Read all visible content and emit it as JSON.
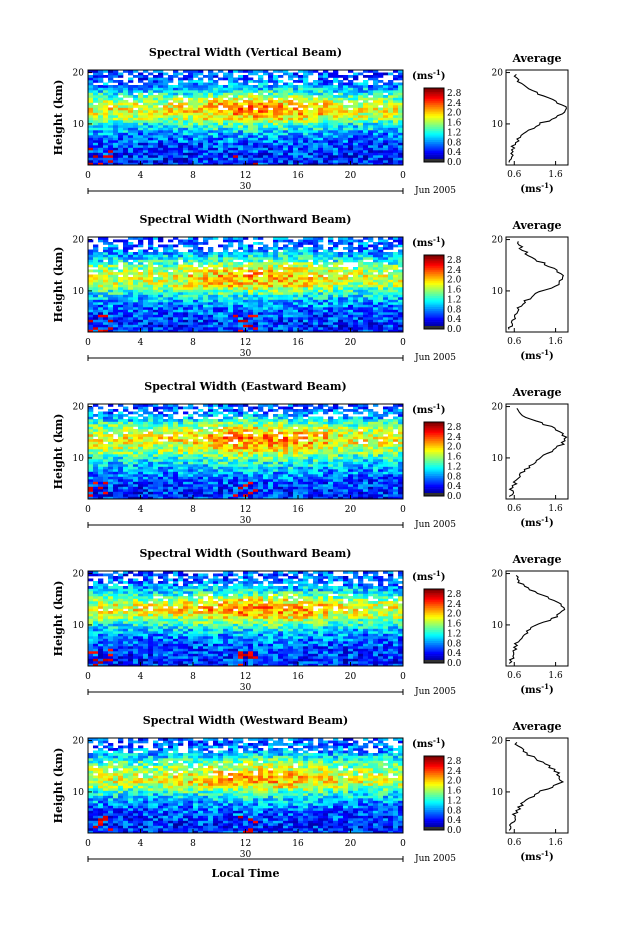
{
  "figure": {
    "date_label": "Jun 2005",
    "day_label": "30",
    "xlabel": "Local Time",
    "ylabel": "Height (km)",
    "cbar_unit_base": "(ms",
    "cbar_unit_exp": "-1",
    "cbar_unit_close": ")",
    "avg_title": "Average",
    "avg_xlabel_base": "(ms",
    "avg_xlabel_exp": "-1",
    "avg_xlabel_close": ")"
  },
  "chart_data": [
    {
      "type": "heatmap",
      "title": "Spectral Width (Vertical Beam)",
      "xlabel": "Local Time",
      "ylabel": "Height (km)",
      "x_ticks": [
        "0",
        "4",
        "8",
        "12",
        "16",
        "20",
        "0"
      ],
      "xlim": [
        0,
        24
      ],
      "y_ticks": [
        "10",
        "20"
      ],
      "ylim": [
        2,
        20.5
      ],
      "colorbar": {
        "ticks": [
          "0.0",
          "0.4",
          "0.8",
          "1.2",
          "1.6",
          "2.0",
          "2.4",
          "2.8"
        ],
        "range": [
          0,
          3.0
        ]
      },
      "average_profile": {
        "title": "Average",
        "x_ticks": [
          "0.6",
          "1.6"
        ],
        "xlim": [
          0.4,
          1.9
        ],
        "y_ticks": [
          "10",
          "20"
        ],
        "heights": [
          2.5,
          4,
          6,
          8,
          10,
          11,
          12,
          13,
          14,
          15,
          16,
          17,
          18,
          19,
          20
        ],
        "values": [
          0.5,
          0.55,
          0.6,
          0.8,
          1.2,
          1.6,
          1.75,
          1.85,
          1.7,
          1.45,
          1.15,
          0.9,
          0.75,
          0.65,
          0.6
        ]
      }
    },
    {
      "type": "heatmap",
      "title": "Spectral Width (Northward Beam)",
      "xlabel": "Local Time",
      "ylabel": "Height (km)",
      "x_ticks": [
        "0",
        "4",
        "8",
        "12",
        "16",
        "20",
        "0"
      ],
      "xlim": [
        0,
        24
      ],
      "y_ticks": [
        "10",
        "20"
      ],
      "ylim": [
        2,
        20.5
      ],
      "colorbar": {
        "ticks": [
          "0.0",
          "0.4",
          "0.8",
          "1.2",
          "1.6",
          "2.0",
          "2.4",
          "2.8"
        ],
        "range": [
          0,
          3.0
        ]
      },
      "average_profile": {
        "title": "Average",
        "x_ticks": [
          "0.6",
          "1.6"
        ],
        "xlim": [
          0.4,
          1.9
        ],
        "y_ticks": [
          "10",
          "20"
        ],
        "heights": [
          2.5,
          4,
          6,
          8,
          10,
          11,
          12,
          13,
          14,
          15,
          16,
          17,
          18,
          19,
          20
        ],
        "values": [
          0.5,
          0.55,
          0.65,
          0.85,
          1.25,
          1.6,
          1.7,
          1.75,
          1.6,
          1.4,
          1.15,
          0.95,
          0.8,
          0.7,
          0.65
        ]
      }
    },
    {
      "type": "heatmap",
      "title": "Spectral Width (Eastward Beam)",
      "xlabel": "Local Time",
      "ylabel": "Height (km)",
      "x_ticks": [
        "0",
        "4",
        "8",
        "12",
        "16",
        "20",
        "0"
      ],
      "xlim": [
        0,
        24
      ],
      "y_ticks": [
        "10",
        "20"
      ],
      "ylim": [
        2,
        20.5
      ],
      "colorbar": {
        "ticks": [
          "0.0",
          "0.4",
          "0.8",
          "1.2",
          "1.6",
          "2.0",
          "2.4",
          "2.8"
        ],
        "range": [
          0,
          3.0
        ]
      },
      "average_profile": {
        "title": "Average",
        "x_ticks": [
          "0.6",
          "1.6"
        ],
        "xlim": [
          0.4,
          1.9
        ],
        "y_ticks": [
          "10",
          "20"
        ],
        "heights": [
          2.5,
          4,
          6,
          8,
          10,
          11,
          12,
          13,
          14,
          15,
          16,
          17,
          18,
          19,
          20
        ],
        "values": [
          0.5,
          0.55,
          0.65,
          0.9,
          1.2,
          1.45,
          1.65,
          1.8,
          1.85,
          1.7,
          1.5,
          1.2,
          0.9,
          0.7,
          0.6
        ]
      }
    },
    {
      "type": "heatmap",
      "title": "Spectral Width (Southward Beam)",
      "xlabel": "Local Time",
      "ylabel": "Height (km)",
      "x_ticks": [
        "0",
        "4",
        "8",
        "12",
        "16",
        "20",
        "0"
      ],
      "xlim": [
        0,
        24
      ],
      "y_ticks": [
        "10",
        "20"
      ],
      "ylim": [
        2,
        20.5
      ],
      "colorbar": {
        "ticks": [
          "0.0",
          "0.4",
          "0.8",
          "1.2",
          "1.6",
          "2.0",
          "2.4",
          "2.8"
        ],
        "range": [
          0,
          3.0
        ]
      },
      "average_profile": {
        "title": "Average",
        "x_ticks": [
          "0.6",
          "1.6"
        ],
        "xlim": [
          0.4,
          1.9
        ],
        "y_ticks": [
          "10",
          "20"
        ],
        "heights": [
          2.5,
          4,
          6,
          8,
          10,
          11,
          12,
          13,
          14,
          15,
          16,
          17,
          18,
          19,
          20
        ],
        "values": [
          0.5,
          0.55,
          0.62,
          0.8,
          1.15,
          1.45,
          1.7,
          1.85,
          1.75,
          1.5,
          1.2,
          0.95,
          0.78,
          0.66,
          0.6
        ]
      }
    },
    {
      "type": "heatmap",
      "title": "Spectral Width (Westward Beam)",
      "xlabel": "Local Time",
      "ylabel": "Height (km)",
      "x_ticks": [
        "0",
        "4",
        "8",
        "12",
        "16",
        "20",
        "0"
      ],
      "xlim": [
        0,
        24
      ],
      "y_ticks": [
        "10",
        "20"
      ],
      "ylim": [
        2,
        20.5
      ],
      "colorbar": {
        "ticks": [
          "0.0",
          "0.4",
          "0.8",
          "1.2",
          "1.6",
          "2.0",
          "2.4",
          "2.8"
        ],
        "range": [
          0,
          3.0
        ]
      },
      "average_profile": {
        "title": "Average",
        "x_ticks": [
          "0.6",
          "1.6"
        ],
        "xlim": [
          0.4,
          1.9
        ],
        "y_ticks": [
          "10",
          "20"
        ],
        "heights": [
          2.5,
          4,
          6,
          8,
          10,
          11,
          12,
          13,
          14,
          15,
          16,
          17,
          18,
          19,
          20
        ],
        "values": [
          0.5,
          0.55,
          0.62,
          0.82,
          1.2,
          1.55,
          1.75,
          1.7,
          1.6,
          1.45,
          1.25,
          1.0,
          0.8,
          0.68,
          0.62
        ]
      }
    }
  ]
}
